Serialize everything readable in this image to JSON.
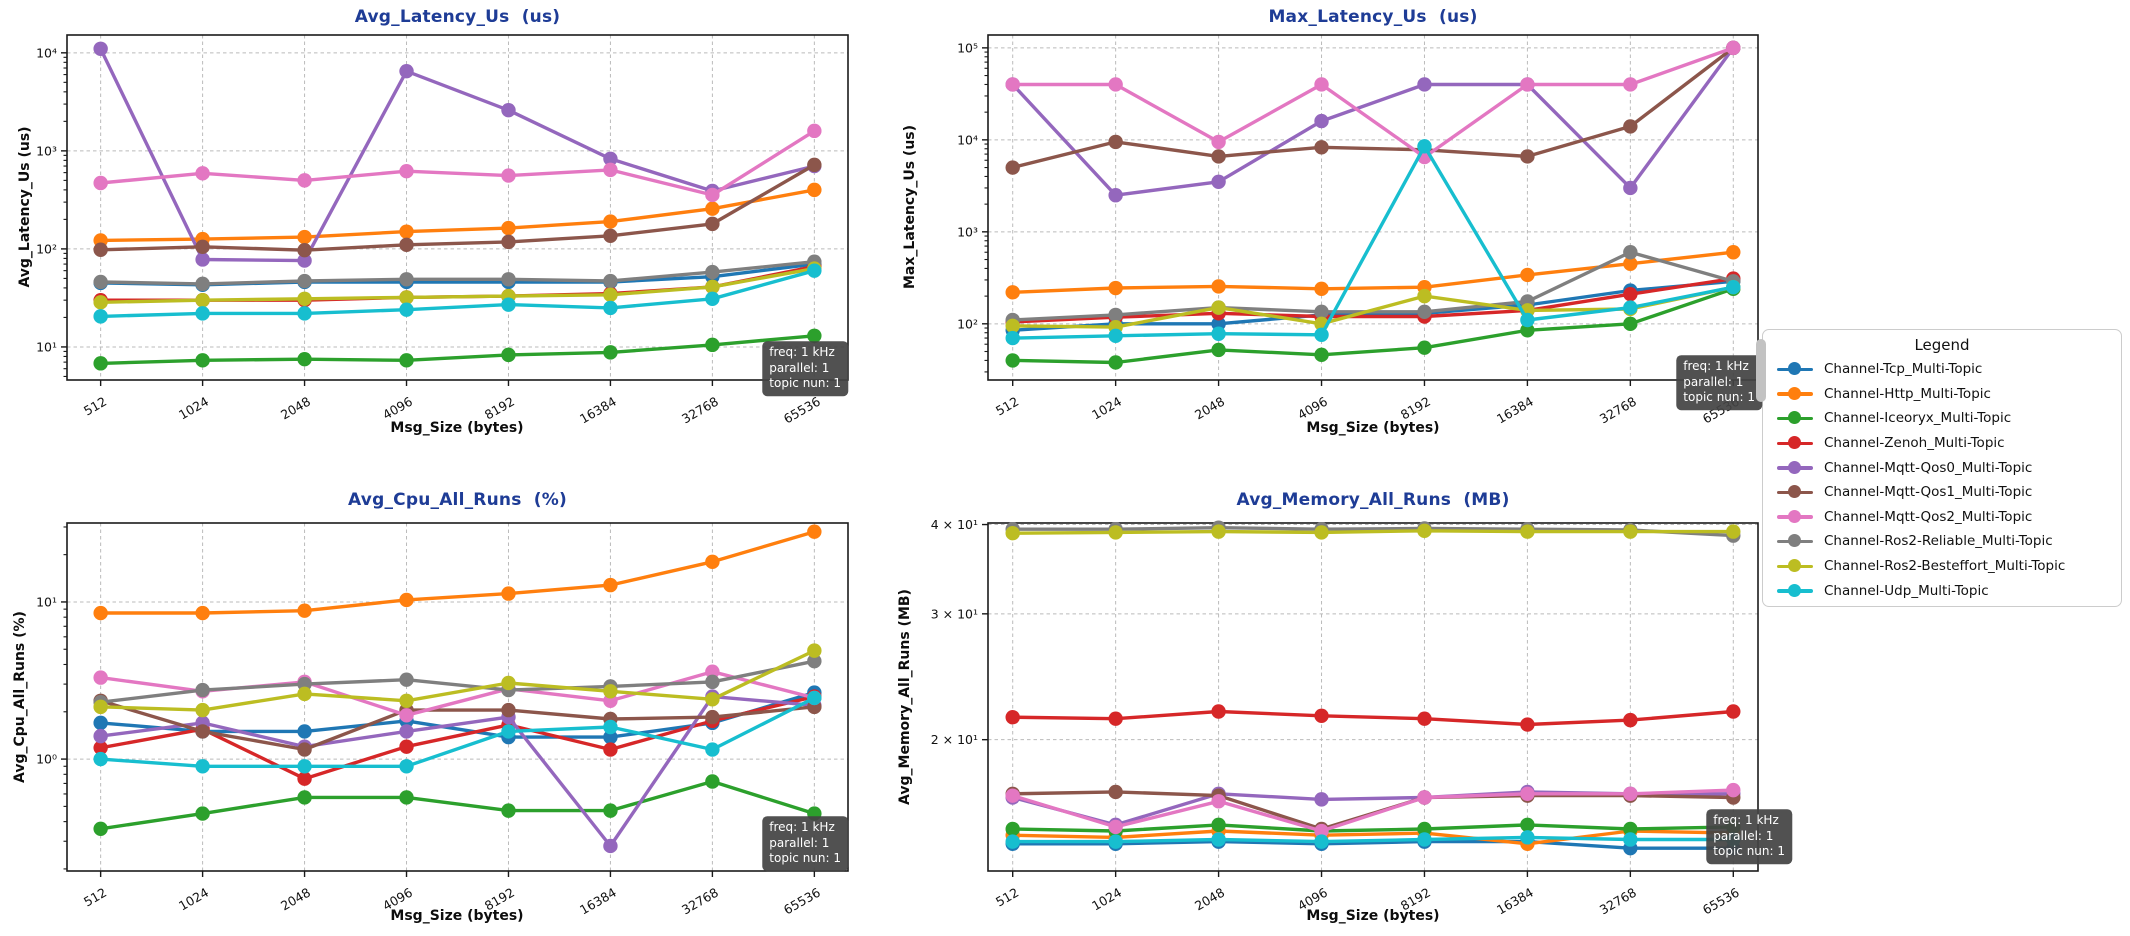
{
  "figure": {
    "background": "#ffffff"
  },
  "style": {
    "title_color": "#1e3c96",
    "axis_color": "#1a1a1a",
    "grid_color": "#bbbbbb",
    "annotation_bg": "#444444",
    "legend_border": "#cccccc"
  },
  "annotation": {
    "lines": [
      "freq: 1 kHz",
      "parallel: 1",
      "topic nun: 1"
    ]
  },
  "legend": {
    "title": "Legend",
    "items": [
      {
        "label": "Channel-Tcp_Multi-Topic",
        "color": "#1f77b4"
      },
      {
        "label": "Channel-Http_Multi-Topic",
        "color": "#ff7f0e"
      },
      {
        "label": "Channel-Iceoryx_Multi-Topic",
        "color": "#2ca02c"
      },
      {
        "label": "Channel-Zenoh_Multi-Topic",
        "color": "#d62728"
      },
      {
        "label": "Channel-Mqtt-Qos0_Multi-Topic",
        "color": "#9467bd"
      },
      {
        "label": "Channel-Mqtt-Qos1_Multi-Topic",
        "color": "#8c564b"
      },
      {
        "label": "Channel-Mqtt-Qos2_Multi-Topic",
        "color": "#e377c2"
      },
      {
        "label": "Channel-Ros2-Reliable_Multi-Topic",
        "color": "#7f7f7f"
      },
      {
        "label": "Channel-Ros2-Besteffort_Multi-Topic",
        "color": "#bcbd22"
      },
      {
        "label": "Channel-Udp_Multi-Topic",
        "color": "#17becf"
      }
    ]
  },
  "chart_data": [
    {
      "type": "line",
      "title": "Avg_Latency_Us  (us)",
      "xlabel": "Msg_Size (bytes)",
      "ylabel": "Avg_Latency_Us (us)",
      "yscale": "log",
      "grid": true,
      "x_tick_labels": [
        "512",
        "1024",
        "2048",
        "4096",
        "8192",
        "16384",
        "32768",
        "65536"
      ],
      "ylim": [
        4.6,
        15200
      ],
      "yticks": [
        {
          "value": 10,
          "label": "10¹"
        },
        {
          "value": 100,
          "label": "10²"
        },
        {
          "value": 1000,
          "label": "10³"
        },
        {
          "value": 10000,
          "label": "10⁴"
        }
      ],
      "series": [
        {
          "name": "Channel-Tcp_Multi-Topic",
          "values": [
            45,
            43,
            46,
            46,
            46,
            46,
            52,
            70
          ]
        },
        {
          "name": "Channel-Http_Multi-Topic",
          "values": [
            122,
            126,
            132,
            150,
            163,
            190,
            257,
            400
          ]
        },
        {
          "name": "Channel-Iceoryx_Multi-Topic",
          "values": [
            6.8,
            7.3,
            7.5,
            7.3,
            8.3,
            8.8,
            10.5,
            13
          ]
        },
        {
          "name": "Channel-Zenoh_Multi-Topic",
          "values": [
            30,
            30,
            30,
            32,
            33,
            35,
            41,
            66
          ]
        },
        {
          "name": "Channel-Mqtt-Qos0_Multi-Topic",
          "values": [
            11000,
            78,
            76,
            6500,
            2600,
            830,
            390,
            700
          ]
        },
        {
          "name": "Channel-Mqtt-Qos1_Multi-Topic",
          "values": [
            98,
            105,
            97,
            110,
            118,
            136,
            180,
            720
          ]
        },
        {
          "name": "Channel-Mqtt-Qos2_Multi-Topic",
          "values": [
            470,
            590,
            500,
            620,
            560,
            640,
            355,
            1600
          ]
        },
        {
          "name": "Channel-Ros2-Reliable_Multi-Topic",
          "values": [
            46,
            44,
            47,
            49,
            49,
            47,
            58,
            74
          ]
        },
        {
          "name": "Channel-Ros2-Besteffort_Multi-Topic",
          "values": [
            28.5,
            30,
            31,
            32,
            33,
            34,
            41,
            63
          ]
        },
        {
          "name": "Channel-Udp_Multi-Topic",
          "values": [
            20.5,
            22,
            22,
            24,
            27,
            25,
            31,
            60
          ]
        }
      ]
    },
    {
      "type": "line",
      "title": "Max_Latency_Us  (us)",
      "xlabel": "Msg_Size (bytes)",
      "ylabel": "Max_Latency_Us (us)",
      "yscale": "log",
      "grid": true,
      "x_tick_labels": [
        "512",
        "1024",
        "2048",
        "4096",
        "8192",
        "16384",
        "32768",
        "65536"
      ],
      "ylim": [
        24.5,
        138000
      ],
      "yticks": [
        {
          "value": 100,
          "label": "10²"
        },
        {
          "value": 1000,
          "label": "10³"
        },
        {
          "value": 10000,
          "label": "10⁴"
        },
        {
          "value": 100000,
          "label": "10⁵"
        }
      ],
      "series": [
        {
          "name": "Channel-Tcp_Multi-Topic",
          "values": [
            85,
            100,
            100,
            125,
            130,
            160,
            230,
            290
          ]
        },
        {
          "name": "Channel-Http_Multi-Topic",
          "values": [
            220,
            245,
            255,
            240,
            250,
            340,
            450,
            600
          ]
        },
        {
          "name": "Channel-Iceoryx_Multi-Topic",
          "values": [
            40,
            38,
            52,
            46,
            55,
            85,
            100,
            240
          ]
        },
        {
          "name": "Channel-Zenoh_Multi-Topic",
          "values": [
            105,
            118,
            130,
            120,
            120,
            140,
            210,
            310
          ]
        },
        {
          "name": "Channel-Mqtt-Qos0_Multi-Topic",
          "values": [
            40000,
            2500,
            3500,
            16000,
            40000,
            40000,
            3000,
            100000
          ]
        },
        {
          "name": "Channel-Mqtt-Qos1_Multi-Topic",
          "values": [
            5000,
            9500,
            6600,
            8300,
            7800,
            6600,
            14000,
            100000
          ]
        },
        {
          "name": "Channel-Mqtt-Qos2_Multi-Topic",
          "values": [
            40000,
            40000,
            9500,
            40000,
            6500,
            40000,
            40000,
            100000
          ]
        },
        {
          "name": "Channel-Ros2-Reliable_Multi-Topic",
          "values": [
            110,
            125,
            150,
            135,
            135,
            175,
            600,
            290
          ]
        },
        {
          "name": "Channel-Ros2-Besteffort_Multi-Topic",
          "values": [
            95,
            92,
            150,
            100,
            200,
            140,
            145,
            250
          ]
        },
        {
          "name": "Channel-Udp_Multi-Topic",
          "values": [
            70,
            74,
            78,
            76,
            8500,
            110,
            150,
            250
          ]
        }
      ]
    },
    {
      "type": "line",
      "title": "Avg_Cpu_All_Runs  (%)",
      "xlabel": "Msg_Size (bytes)",
      "ylabel": "Avg_Cpu_All_Runs (%)",
      "yscale": "log",
      "grid": true,
      "x_tick_labels": [
        "512",
        "1024",
        "2048",
        "4096",
        "8192",
        "16384",
        "32768",
        "65536"
      ],
      "ylim": [
        0.194,
        31.8
      ],
      "yticks": [
        {
          "value": 1,
          "label": "10⁰"
        },
        {
          "value": 10,
          "label": "10¹"
        }
      ],
      "series": [
        {
          "name": "Channel-Tcp_Multi-Topic",
          "values": [
            1.7,
            1.5,
            1.5,
            1.75,
            1.38,
            1.38,
            1.7,
            2.65
          ]
        },
        {
          "name": "Channel-Http_Multi-Topic",
          "values": [
            8.5,
            8.5,
            8.8,
            10.3,
            11.3,
            12.8,
            18,
            28
          ]
        },
        {
          "name": "Channel-Iceoryx_Multi-Topic",
          "values": [
            0.36,
            0.45,
            0.57,
            0.57,
            0.47,
            0.47,
            0.72,
            0.45
          ]
        },
        {
          "name": "Channel-Zenoh_Multi-Topic",
          "values": [
            1.18,
            1.55,
            0.75,
            1.2,
            1.65,
            1.15,
            1.75,
            2.5
          ]
        },
        {
          "name": "Channel-Mqtt-Qos0_Multi-Topic",
          "values": [
            1.4,
            1.7,
            1.2,
            1.5,
            1.85,
            0.28,
            2.5,
            2.2
          ]
        },
        {
          "name": "Channel-Mqtt-Qos1_Multi-Topic",
          "values": [
            2.35,
            1.5,
            1.15,
            2.05,
            2.05,
            1.8,
            1.85,
            2.15
          ]
        },
        {
          "name": "Channel-Mqtt-Qos2_Multi-Topic",
          "values": [
            3.3,
            2.7,
            3.1,
            1.9,
            2.8,
            2.35,
            3.6,
            2.45
          ]
        },
        {
          "name": "Channel-Ros2-Reliable_Multi-Topic",
          "values": [
            2.3,
            2.75,
            3.0,
            3.2,
            2.75,
            2.9,
            3.1,
            4.2
          ]
        },
        {
          "name": "Channel-Ros2-Besteffort_Multi-Topic",
          "values": [
            2.15,
            2.05,
            2.6,
            2.35,
            3.05,
            2.7,
            2.4,
            4.9
          ]
        },
        {
          "name": "Channel-Udp_Multi-Topic",
          "values": [
            1.0,
            0.9,
            0.9,
            0.9,
            1.5,
            1.6,
            1.15,
            2.45
          ]
        }
      ]
    },
    {
      "type": "line",
      "title": "Avg_Memory_All_Runs  (MB)",
      "xlabel": "Msg_Size (bytes)",
      "ylabel": "Avg_Memory_All_Runs (MB)",
      "yscale": "log",
      "grid": true,
      "x_tick_labels": [
        "512",
        "1024",
        "2048",
        "4096",
        "8192",
        "16384",
        "32768",
        "65536"
      ],
      "ylim": [
        13.1,
        40.2
      ],
      "yticks": [
        {
          "value": 20,
          "label": "2 × 10¹"
        },
        {
          "value": 30,
          "label": "3 × 10¹"
        },
        {
          "value": 40,
          "label": "4 × 10¹"
        }
      ],
      "series": [
        {
          "name": "Channel-Tcp_Multi-Topic",
          "values": [
            14.3,
            14.3,
            14.4,
            14.3,
            14.4,
            14.4,
            14.1,
            14.1
          ]
        },
        {
          "name": "Channel-Http_Multi-Topic",
          "values": [
            14.7,
            14.6,
            14.9,
            14.7,
            14.8,
            14.3,
            14.9,
            14.8
          ]
        },
        {
          "name": "Channel-Iceoryx_Multi-Topic",
          "values": [
            15.0,
            14.9,
            15.2,
            14.9,
            15.0,
            15.2,
            15.0,
            15.1
          ]
        },
        {
          "name": "Channel-Zenoh_Multi-Topic",
          "values": [
            21.5,
            21.4,
            21.9,
            21.6,
            21.4,
            21.0,
            21.3,
            21.9
          ]
        },
        {
          "name": "Channel-Mqtt-Qos0_Multi-Topic",
          "values": [
            16.6,
            15.2,
            16.8,
            16.5,
            16.6,
            16.9,
            16.8,
            16.8
          ]
        },
        {
          "name": "Channel-Mqtt-Qos1_Multi-Topic",
          "values": [
            16.8,
            16.9,
            16.7,
            15.0,
            16.6,
            16.7,
            16.7,
            16.6
          ]
        },
        {
          "name": "Channel-Mqtt-Qos2_Multi-Topic",
          "values": [
            16.7,
            15.1,
            16.4,
            14.9,
            16.6,
            16.8,
            16.8,
            17.0
          ]
        },
        {
          "name": "Channel-Ros2-Reliable_Multi-Topic",
          "values": [
            39.4,
            39.4,
            39.6,
            39.4,
            39.5,
            39.4,
            39.3,
            38.6
          ]
        },
        {
          "name": "Channel-Ros2-Besteffort_Multi-Topic",
          "values": [
            38.9,
            39.0,
            39.1,
            39.0,
            39.2,
            39.1,
            39.1,
            39.1
          ]
        },
        {
          "name": "Channel-Udp_Multi-Topic",
          "values": [
            14.4,
            14.4,
            14.5,
            14.4,
            14.5,
            14.6,
            14.5,
            14.5
          ]
        }
      ]
    }
  ]
}
